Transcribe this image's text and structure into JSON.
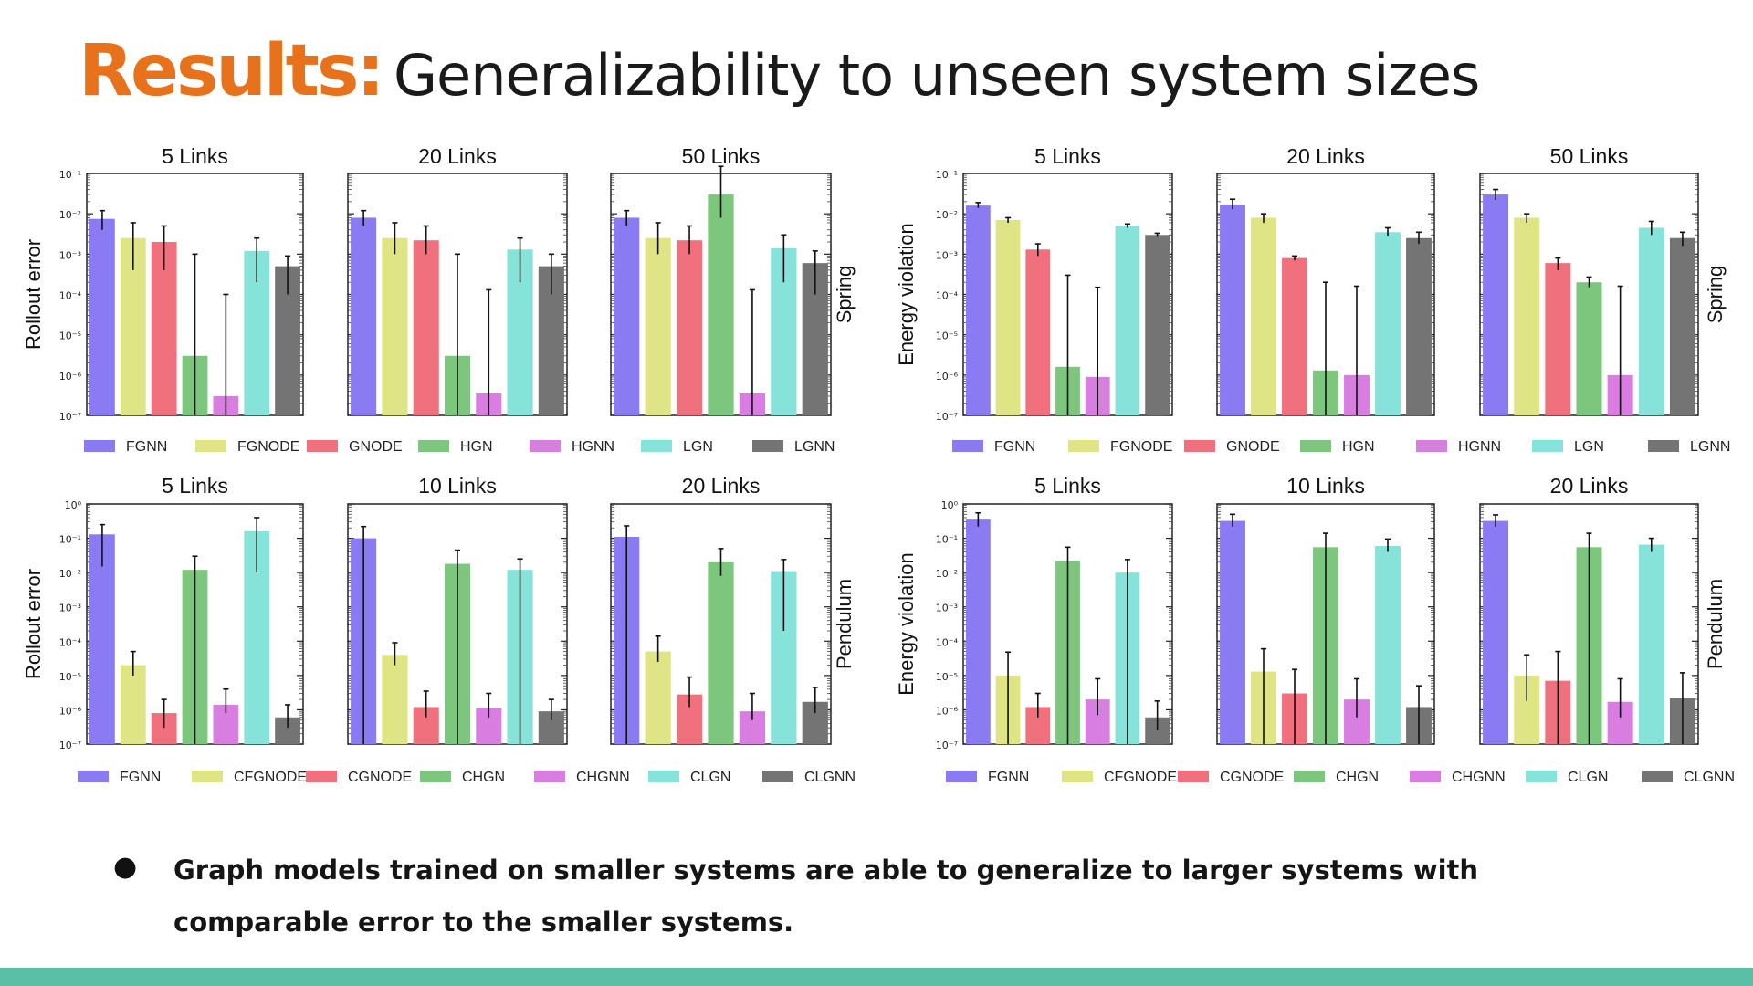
{
  "slide": {
    "title_prefix": "Results:",
    "title_main": "Generalizability to unseen system sizes",
    "bullet_symbol": "●",
    "bullet_text": "Graph models trained on smaller systems are able to generalize to larger systems with comparable error to the smaller systems.",
    "footer_color": "#5bbea6"
  },
  "legends": {
    "spring": [
      "FGNN",
      "FGNODE",
      "GNODE",
      "HGN",
      "HGNN",
      "LGN",
      "LGNN"
    ],
    "pendulum": [
      "FGNN",
      "CFGNODE",
      "CGNODE",
      "CHGN",
      "CHGNN",
      "CLGN",
      "CLGNN"
    ]
  },
  "colors": [
    "#8a7bf2",
    "#dfe485",
    "#f0707d",
    "#7cc77d",
    "#d77ee0",
    "#86e3d9",
    "#747474"
  ],
  "chart_data": [
    {
      "type": "bar",
      "title": "5 Links",
      "ylabel": "Rollout error",
      "yscale": "log",
      "ylim": [
        1e-07,
        0.1
      ],
      "y_ticks": [
        "10⁻¹",
        "10⁻²",
        "10⁻³",
        "10⁻⁴",
        "10⁻⁵",
        "10⁻⁶",
        "10⁻⁷"
      ],
      "categories": [
        "FGNN",
        "FGNODE",
        "GNODE",
        "HGN",
        "HGNN",
        "LGN",
        "LGNN"
      ],
      "values": [
        0.0075,
        0.0025,
        0.002,
        3e-06,
        3e-07,
        0.0012,
        0.0005
      ],
      "err_low": [
        0.004,
        0.0004,
        0.0004,
        1e-07,
        1e-07,
        0.0002,
        0.0001
      ],
      "err_high": [
        0.012,
        0.006,
        0.005,
        0.001,
        0.0001,
        0.0025,
        0.0009
      ]
    },
    {
      "type": "bar",
      "title": "20 Links",
      "yscale": "log",
      "ylim": [
        1e-07,
        0.1
      ],
      "y_ticks": [
        "",
        "",
        "",
        "",
        "",
        "",
        ""
      ],
      "categories": [
        "FGNN",
        "FGNODE",
        "GNODE",
        "HGN",
        "HGNN",
        "LGN",
        "LGNN"
      ],
      "values": [
        0.008,
        0.0025,
        0.0022,
        3e-06,
        3.5e-07,
        0.0013,
        0.0005
      ],
      "err_low": [
        0.005,
        0.001,
        0.001,
        1e-07,
        1e-07,
        0.0002,
        0.0001
      ],
      "err_high": [
        0.012,
        0.006,
        0.005,
        0.001,
        0.00013,
        0.0025,
        0.001
      ]
    },
    {
      "type": "bar",
      "title": "50 Links",
      "label_right": "Spring",
      "yscale": "log",
      "ylim": [
        1e-07,
        0.1
      ],
      "y_ticks": [
        "",
        "",
        "",
        "",
        "",
        "",
        ""
      ],
      "categories": [
        "FGNN",
        "FGNODE",
        "GNODE",
        "HGN",
        "HGNN",
        "LGN",
        "LGNN"
      ],
      "values": [
        0.008,
        0.0025,
        0.0022,
        0.03,
        3.5e-07,
        0.0014,
        0.0006
      ],
      "err_low": [
        0.005,
        0.001,
        0.001,
        0.008,
        1e-07,
        0.0002,
        0.0001
      ],
      "err_high": [
        0.012,
        0.006,
        0.005,
        0.15,
        0.00013,
        0.003,
        0.0012
      ]
    },
    {
      "type": "bar",
      "title": "5 Links",
      "ylabel": "Energy violation",
      "yscale": "log",
      "ylim": [
        1e-07,
        0.1
      ],
      "y_ticks": [
        "10⁻¹",
        "10⁻²",
        "10⁻³",
        "10⁻⁴",
        "10⁻⁵",
        "10⁻⁶",
        "10⁻⁷"
      ],
      "categories": [
        "FGNN",
        "FGNODE",
        "GNODE",
        "HGN",
        "HGNN",
        "LGN",
        "LGNN"
      ],
      "values": [
        0.016,
        0.007,
        0.0013,
        1.6e-06,
        9e-07,
        0.005,
        0.003
      ],
      "err_low": [
        0.014,
        0.006,
        0.0009,
        1e-07,
        1e-07,
        0.0045,
        0.0027
      ],
      "err_high": [
        0.019,
        0.008,
        0.0018,
        0.0003,
        0.00015,
        0.0056,
        0.0033
      ]
    },
    {
      "type": "bar",
      "title": "20 Links",
      "yscale": "log",
      "ylim": [
        1e-07,
        0.1
      ],
      "y_ticks": [
        "",
        "",
        "",
        "",
        "",
        "",
        ""
      ],
      "categories": [
        "FGNN",
        "FGNODE",
        "GNODE",
        "HGN",
        "HGNN",
        "LGN",
        "LGNN"
      ],
      "values": [
        0.017,
        0.008,
        0.0008,
        1.3e-06,
        1e-06,
        0.0035,
        0.0025
      ],
      "err_low": [
        0.013,
        0.006,
        0.0007,
        1e-07,
        1e-07,
        0.0028,
        0.0018
      ],
      "err_high": [
        0.023,
        0.01,
        0.0009,
        0.0002,
        0.00016,
        0.0045,
        0.0035
      ]
    },
    {
      "type": "bar",
      "title": "50 Links",
      "label_right": "Spring",
      "yscale": "log",
      "ylim": [
        1e-07,
        0.1
      ],
      "y_ticks": [
        "",
        "",
        "",
        "",
        "",
        "",
        ""
      ],
      "categories": [
        "FGNN",
        "FGNODE",
        "GNODE",
        "HGN",
        "HGNN",
        "LGN",
        "LGNN"
      ],
      "values": [
        0.03,
        0.008,
        0.0006,
        0.0002,
        1e-06,
        0.0045,
        0.0025
      ],
      "err_low": [
        0.022,
        0.006,
        0.0004,
        0.00015,
        1e-07,
        0.003,
        0.0016
      ],
      "err_high": [
        0.04,
        0.01,
        0.0008,
        0.00027,
        0.00016,
        0.0065,
        0.0035
      ]
    },
    {
      "type": "bar",
      "title": "5 Links",
      "ylabel": "Rollout error",
      "yscale": "log",
      "ylim": [
        1e-07,
        1
      ],
      "y_ticks": [
        "10⁰",
        "10⁻¹",
        "10⁻²",
        "10⁻³",
        "10⁻⁴",
        "10⁻⁵",
        "10⁻⁶",
        "10⁻⁷"
      ],
      "categories": [
        "FGNN",
        "CFGNODE",
        "CGNODE",
        "CHGN",
        "CHGNN",
        "CLGN",
        "CLGNN"
      ],
      "values": [
        0.13,
        2e-05,
        8e-07,
        0.012,
        1.4e-06,
        0.16,
        6e-07
      ],
      "err_low": [
        0.015,
        1e-05,
        3e-07,
        1e-07,
        8e-07,
        0.01,
        3e-07
      ],
      "err_high": [
        0.25,
        5e-05,
        2e-06,
        0.03,
        4e-06,
        0.4,
        1.4e-06
      ]
    },
    {
      "type": "bar",
      "title": "10 Links",
      "yscale": "log",
      "ylim": [
        1e-07,
        1
      ],
      "y_ticks": [
        "",
        "",
        "",
        "",
        "",
        "",
        "",
        ""
      ],
      "categories": [
        "FGNN",
        "CFGNODE",
        "CGNODE",
        "CHGN",
        "CHGNN",
        "CLGN",
        "CLGNN"
      ],
      "values": [
        0.1,
        4e-05,
        1.2e-06,
        0.018,
        1.1e-06,
        0.012,
        9e-07
      ],
      "err_low": [
        1e-07,
        2e-05,
        6e-07,
        1e-07,
        6e-07,
        1e-07,
        5e-07
      ],
      "err_high": [
        0.22,
        9e-05,
        3.5e-06,
        0.045,
        3e-06,
        0.025,
        2e-06
      ]
    },
    {
      "type": "bar",
      "title": "20 Links",
      "label_right": "Pendulum",
      "yscale": "log",
      "ylim": [
        1e-07,
        1
      ],
      "y_ticks": [
        "",
        "",
        "",
        "",
        "",
        "",
        "",
        ""
      ],
      "categories": [
        "FGNN",
        "CFGNODE",
        "CGNODE",
        "CHGN",
        "CHGNN",
        "CLGN",
        "CLGNN"
      ],
      "values": [
        0.11,
        5e-05,
        2.8e-06,
        0.02,
        9e-07,
        0.011,
        1.7e-06
      ],
      "err_low": [
        1e-07,
        2.5e-05,
        1.2e-06,
        0.008,
        5e-07,
        0.0002,
        8e-07
      ],
      "err_high": [
        0.23,
        0.00014,
        9e-06,
        0.05,
        3e-06,
        0.024,
        4.5e-06
      ]
    },
    {
      "type": "bar",
      "title": "5 Links",
      "ylabel": "Energy violation",
      "yscale": "log",
      "ylim": [
        1e-07,
        1
      ],
      "y_ticks": [
        "10⁰",
        "10⁻¹",
        "10⁻²",
        "10⁻³",
        "10⁻⁴",
        "10⁻⁵",
        "10⁻⁶",
        "10⁻⁷"
      ],
      "categories": [
        "FGNN",
        "CFGNODE",
        "CGNODE",
        "CHGN",
        "CHGNN",
        "CLGN",
        "CLGNN"
      ],
      "values": [
        0.35,
        1e-05,
        1.2e-06,
        0.022,
        2e-06,
        0.01,
        6e-07
      ],
      "err_low": [
        0.22,
        1e-07,
        6e-07,
        1e-07,
        7e-07,
        1e-07,
        2.5e-07
      ],
      "err_high": [
        0.55,
        4.8e-05,
        3e-06,
        0.055,
        8e-06,
        0.024,
        1.8e-06
      ]
    },
    {
      "type": "bar",
      "title": "10 Links",
      "yscale": "log",
      "ylim": [
        1e-07,
        1
      ],
      "y_ticks": [
        "",
        "",
        "",
        "",
        "",
        "",
        "",
        ""
      ],
      "categories": [
        "FGNN",
        "CFGNODE",
        "CGNODE",
        "CHGN",
        "CHGNN",
        "CLGN",
        "CLGNN"
      ],
      "values": [
        0.32,
        1.3e-05,
        3e-06,
        0.055,
        2e-06,
        0.06,
        1.2e-06
      ],
      "err_low": [
        0.22,
        1e-07,
        1e-07,
        1e-07,
        6e-07,
        0.04,
        1e-07
      ],
      "err_high": [
        0.5,
        6e-05,
        1.5e-05,
        0.14,
        8e-06,
        0.095,
        5e-06
      ]
    },
    {
      "type": "bar",
      "title": "20 Links",
      "label_right": "Pendulum",
      "yscale": "log",
      "ylim": [
        1e-07,
        1
      ],
      "y_ticks": [
        "",
        "",
        "",
        "",
        "",
        "",
        "",
        ""
      ],
      "categories": [
        "FGNN",
        "CFGNODE",
        "CGNODE",
        "CHGN",
        "CHGNN",
        "CLGN",
        "CLGNN"
      ],
      "values": [
        0.32,
        1e-05,
        7e-06,
        0.055,
        1.7e-06,
        0.065,
        2.2e-06
      ],
      "err_low": [
        0.22,
        1.8e-06,
        1e-07,
        1e-07,
        6e-07,
        0.04,
        1e-07
      ],
      "err_high": [
        0.48,
        4e-05,
        5e-05,
        0.14,
        8e-06,
        0.1,
        1.2e-05
      ]
    }
  ]
}
